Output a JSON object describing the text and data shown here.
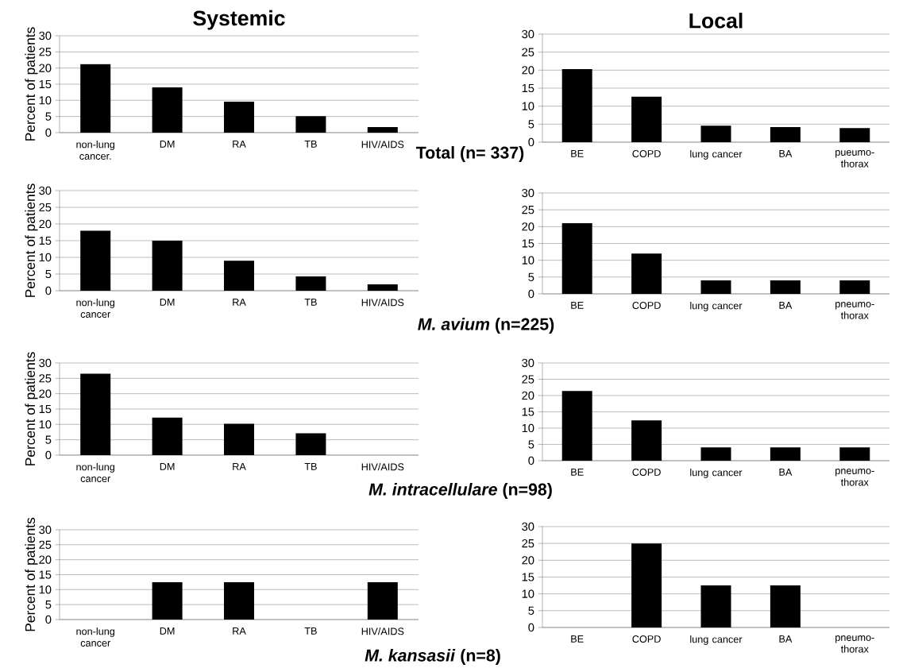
{
  "chart_data": [
    {
      "type": "bar",
      "title": "Systemic",
      "ylabel": "Percent of patients",
      "categories": [
        "non-lung cancer.",
        "DM",
        "RA",
        "TB",
        "HIV/AIDS"
      ],
      "values": [
        21.2,
        14,
        9.6,
        5.1,
        1.7
      ],
      "color": "#000000",
      "ylim": [
        0,
        30
      ],
      "yticks": [
        0,
        5,
        10,
        15,
        20,
        25,
        30
      ],
      "grid": "y",
      "annotations": [
        "Total (n= 337)"
      ]
    },
    {
      "type": "bar",
      "title": "Local",
      "categories": [
        "BE",
        "COPD",
        "lung cancer",
        "BA",
        "pueumo-thorax"
      ],
      "values": [
        20.3,
        12.6,
        4.6,
        4.2,
        3.9
      ],
      "color": "#000000",
      "ylim": [
        0,
        30
      ],
      "yticks": [
        0,
        5,
        10,
        15,
        20,
        25,
        30
      ],
      "grid": "y"
    },
    {
      "type": "bar",
      "ylabel": "Percent of patients",
      "categories": [
        "non-lung cancer",
        "DM",
        "RA",
        "TB",
        "HIV/AIDS"
      ],
      "values": [
        18,
        15,
        9,
        4.3,
        1.9
      ],
      "color": "#000000",
      "ylim": [
        0,
        30
      ],
      "yticks": [
        0,
        5,
        10,
        15,
        20,
        25,
        30
      ],
      "grid": "y",
      "annotations": [
        "*M. avium* (n=225)"
      ]
    },
    {
      "type": "bar",
      "categories": [
        "BE",
        "COPD",
        "lung cancer",
        "BA",
        "pneumo-thorax"
      ],
      "values": [
        21,
        12,
        4,
        4,
        4
      ],
      "color": "#000000",
      "ylim": [
        0,
        30
      ],
      "yticks": [
        0,
        5,
        10,
        15,
        20,
        25,
        30
      ],
      "grid": "y"
    },
    {
      "type": "bar",
      "ylabel": "Percent of patients",
      "categories": [
        "non-lung cancer",
        "DM",
        "RA",
        "TB",
        "HIV/AIDS"
      ],
      "values": [
        26.5,
        12.2,
        10.2,
        7.1,
        0
      ],
      "color": "#000000",
      "ylim": [
        0,
        30
      ],
      "yticks": [
        0,
        5,
        10,
        15,
        20,
        25,
        30
      ],
      "grid": "y",
      "annotations": [
        "*M. intracellulare* (n=98)"
      ]
    },
    {
      "type": "bar",
      "categories": [
        "BE",
        "COPD",
        "lung cancer",
        "BA",
        "pneumo-thorax"
      ],
      "values": [
        21.4,
        12.4,
        4.1,
        4.1,
        4.1
      ],
      "color": "#000000",
      "ylim": [
        0,
        30
      ],
      "yticks": [
        0,
        5,
        10,
        15,
        20,
        25,
        30
      ],
      "grid": "y"
    },
    {
      "type": "bar",
      "ylabel": "Percent of patients",
      "categories": [
        "non-lung cancer",
        "DM",
        "RA",
        "TB",
        "HIV/AIDS"
      ],
      "values": [
        0,
        12.5,
        12.5,
        0,
        12.5
      ],
      "color": "#000000",
      "ylim": [
        0,
        30
      ],
      "yticks": [
        0,
        5,
        10,
        15,
        20,
        25,
        30
      ],
      "grid": "y",
      "annotations": [
        "*M. kansasii* (n=8)"
      ]
    },
    {
      "type": "bar",
      "categories": [
        "BE",
        "COPD",
        "lung cancer",
        "BA",
        "pneumo-thorax"
      ],
      "values": [
        0,
        25,
        12.5,
        12.5,
        0
      ],
      "color": "#000000",
      "ylim": [
        0,
        30
      ],
      "yticks": [
        0,
        5,
        10,
        15,
        20,
        25,
        30
      ],
      "grid": "y"
    }
  ]
}
